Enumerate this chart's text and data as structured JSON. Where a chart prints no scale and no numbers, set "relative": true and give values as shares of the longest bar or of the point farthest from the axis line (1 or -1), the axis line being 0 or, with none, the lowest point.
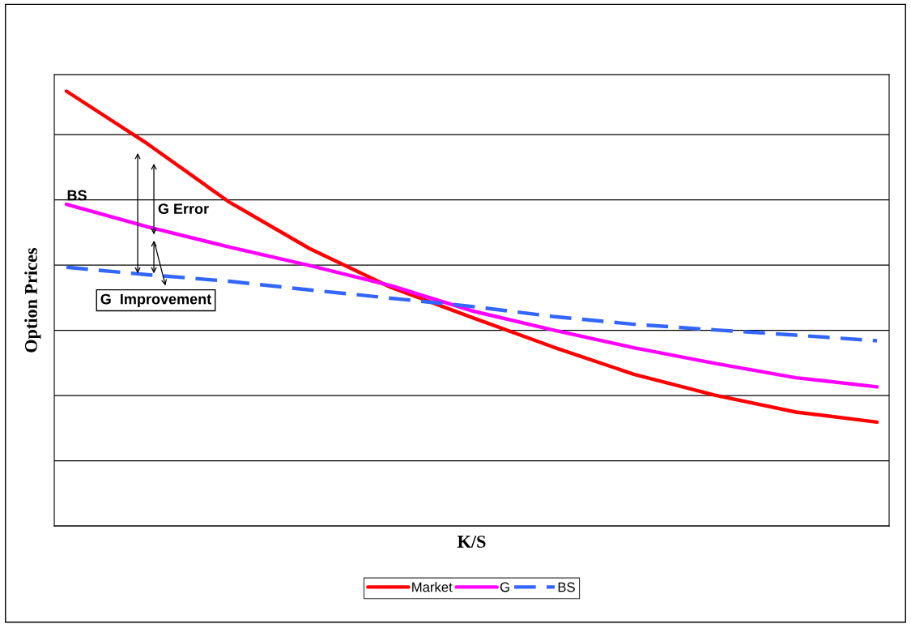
{
  "chart_data": {
    "type": "line",
    "relative": true,
    "xlabel": "K/S",
    "ylabel": "Option Prices",
    "categories": [
      null,
      null,
      null,
      null,
      null,
      null,
      null,
      null,
      null,
      null,
      null
    ],
    "series": [
      {
        "name": "Market",
        "color": "#ff0000",
        "line_style": "solid",
        "values": [
          1,
          0.879,
          0.746,
          0.638,
          0.549,
          0.48,
          0.412,
          0.349,
          0.301,
          0.262,
          0.239
        ]
      },
      {
        "name": "G",
        "color": "#ff00ff",
        "line_style": "solid",
        "values": [
          0.74,
          0.688,
          0.642,
          0.599,
          0.553,
          0.495,
          0.451,
          0.41,
          0.374,
          0.341,
          0.32
        ]
      },
      {
        "name": "BS",
        "color": "#3366ff",
        "line_style": "dashed",
        "values": [
          0.595,
          0.578,
          0.563,
          0.543,
          0.524,
          0.505,
          0.482,
          0.464,
          0.451,
          0.439,
          0.426
        ]
      }
    ],
    "annotations": [
      "BS",
      "G Error",
      "G  Improvement"
    ],
    "grid": "y",
    "legend": "bottom",
    "marker": "none"
  }
}
